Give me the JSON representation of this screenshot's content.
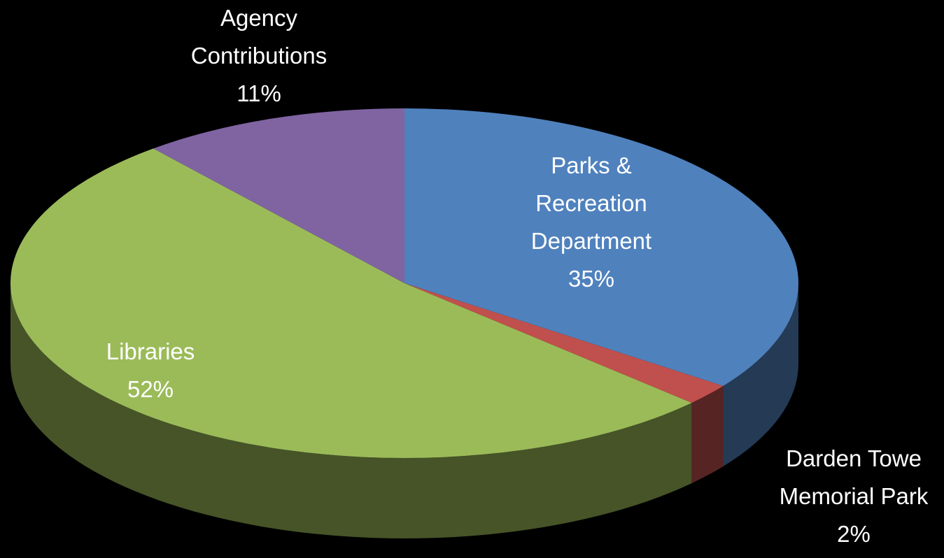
{
  "chart_data": {
    "type": "pie",
    "categories": [
      "Parks & Recreation Department",
      "Darden Towe Memorial Park",
      "Libraries",
      "Agency Contributions"
    ],
    "values": [
      35,
      2,
      52,
      11
    ],
    "value_labels": [
      "35%",
      "2%",
      "52%",
      "11%"
    ],
    "colors": [
      "#4f81bd",
      "#c0504d",
      "#9bbb59",
      "#8064a2"
    ]
  }
}
